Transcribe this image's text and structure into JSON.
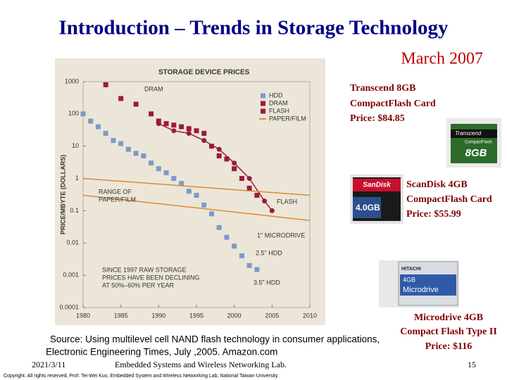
{
  "slide": {
    "title": "Introduction – Trends in Storage Technology",
    "date": "March 2007",
    "products": [
      {
        "lines": [
          "Transcend 8GB",
          "CompactFlash Card",
          "Price:  $84.85"
        ],
        "card_text": [
          "Transcend",
          "CompactFlash",
          "8GB"
        ]
      },
      {
        "lines": [
          "ScanDisk 4GB",
          "CompactFlash Card",
          "Price:  $55.99"
        ],
        "card_text": [
          "SanDisk",
          "4.0GB"
        ]
      },
      {
        "lines": [
          "Microdrive 4GB",
          "Compact Flash Type II",
          "Price: $116"
        ],
        "card_text": [
          "HITACHI",
          "4GB",
          "Microdrive"
        ]
      }
    ],
    "source": [
      "Source: Using multilevel cell NAND flash technology in consumer applications,",
      "Electronic Engineering Times, July ,2005. Amazon.com"
    ],
    "footer_date": "2021/3/11",
    "footer_lab": "Embedded Systems and Wireless Networking Lab.",
    "page_number": "15",
    "copyright": "Copyright. All rights reserved, Prof. Tei-Wei Kuo, Embedded System and Wireless Networking Lab, National Taiwan University."
  },
  "chart_data": {
    "type": "scatter",
    "title": "STORAGE DEVICE PRICES",
    "y_label": "PRICE/MBYTE (DOLLARS)",
    "log_y": true,
    "xlim": [
      1980,
      2010
    ],
    "xticks": [
      1980,
      1985,
      1990,
      1995,
      2000,
      2005,
      2010
    ],
    "ylim": [
      0.0001,
      1000
    ],
    "yticks": [
      0.0001,
      0.001,
      0.01,
      0.1,
      1,
      10,
      100,
      1000
    ],
    "legend": "upper right",
    "series": [
      {
        "name": "HDD",
        "color": "#7b9bc8",
        "marker": "square",
        "line": false,
        "x": [
          1980,
          1981,
          1982,
          1983,
          1984,
          1985,
          1986,
          1987,
          1988,
          1989,
          1990,
          1991,
          1992,
          1993,
          1994,
          1995,
          1996,
          1997,
          1998,
          1999,
          2000,
          2001,
          2002,
          2003
        ],
        "values": [
          100,
          60,
          40,
          25,
          15,
          12,
          8,
          6,
          5,
          3,
          2,
          1.5,
          1,
          0.7,
          0.4,
          0.3,
          0.15,
          0.08,
          0.03,
          0.015,
          0.008,
          0.004,
          0.002,
          0.0015
        ]
      },
      {
        "name": "DRAM",
        "color": "#9b1b3a",
        "marker": "square",
        "line": false,
        "x": [
          1983,
          1985,
          1987,
          1989,
          1990,
          1991,
          1992,
          1993,
          1994,
          1995,
          1996,
          1997,
          1998,
          1999,
          2000,
          2001,
          2002,
          2003
        ],
        "values": [
          800,
          300,
          200,
          100,
          60,
          50,
          45,
          40,
          35,
          30,
          25,
          10,
          5,
          4,
          2,
          1,
          0.5,
          0.3
        ]
      },
      {
        "name": "FLASH",
        "color": "#9b1b3a",
        "marker": "circle",
        "line": true,
        "x": [
          1990,
          1992,
          1994,
          1996,
          1998,
          2000,
          2002,
          2004,
          2005
        ],
        "values": [
          50,
          30,
          25,
          15,
          8,
          3,
          1,
          0.2,
          0.1
        ]
      },
      {
        "name": "PAPER/FILM",
        "color": "#d98a3a",
        "marker": "none",
        "line": true,
        "x": [
          1980,
          2010
        ],
        "values": [
          1,
          0.3
        ]
      },
      {
        "color": "#d98a3a",
        "marker": "none",
        "line": true,
        "x": [
          1980,
          2010
        ],
        "values": [
          0.3,
          0.05
        ]
      }
    ],
    "annotations": [
      [
        "DRAM"
      ],
      [
        "RANGE OF",
        "PAPER/FILM"
      ],
      [
        "FLASH"
      ],
      [
        "1\" MICRODRIVE"
      ],
      [
        "2.5\" HDD"
      ],
      [
        "SINCE 1997 RAW STORAGE",
        "PRICES HAVE BEEN DECLINING",
        "AT 50%–60% PER YEAR"
      ],
      [
        "3.5\" HDD"
      ]
    ]
  }
}
